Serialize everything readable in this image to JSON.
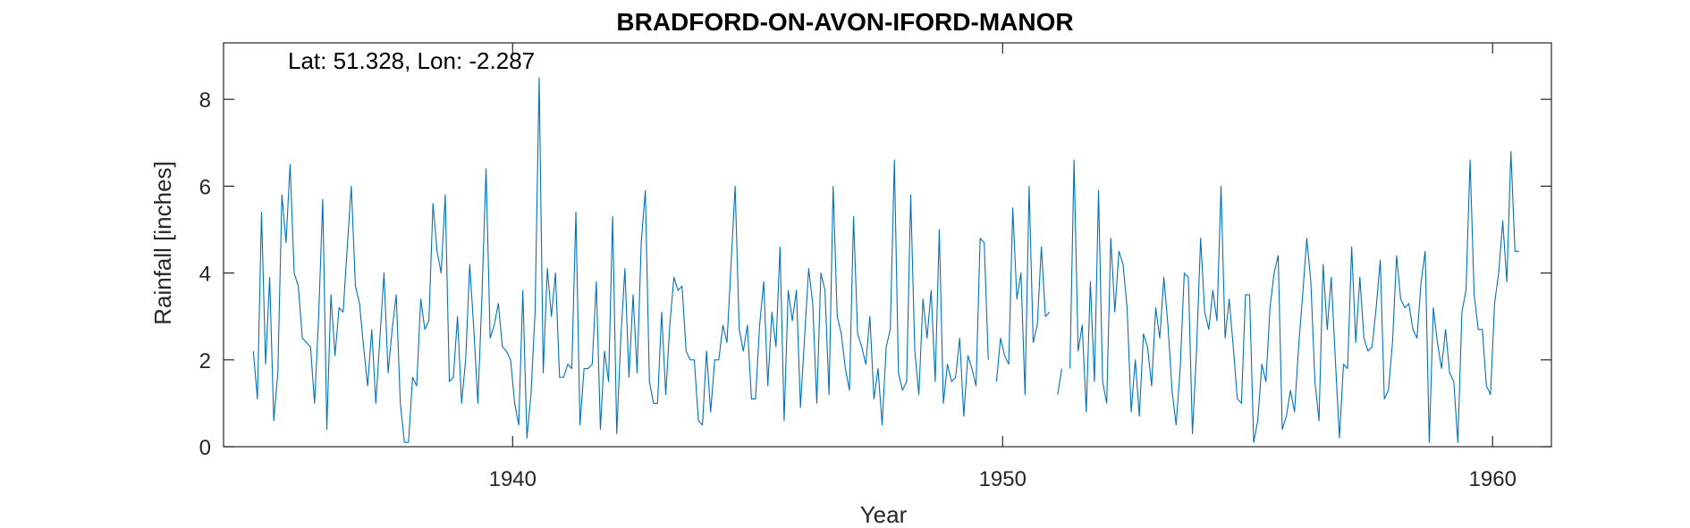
{
  "chart_data": {
    "type": "line",
    "title": "BRADFORD-ON-AVON-IFORD-MANOR",
    "annotation": "Lat: 51.328, Lon: -2.287",
    "xlabel": "Year",
    "ylabel": "Rainfall [inches]",
    "xlim": [
      1934.1,
      1961.2
    ],
    "ylim": [
      0,
      9.3
    ],
    "xticks": [
      1940,
      1950,
      1960
    ],
    "xtick_labels": [
      "1940",
      "1950",
      "1960"
    ],
    "yticks": [
      0,
      2,
      4,
      6,
      8
    ],
    "ytick_labels": [
      "0",
      "2",
      "4",
      "6",
      "8"
    ],
    "grid": false,
    "line_color": "#0072BD",
    "start_year": 1934.708,
    "step_years": 0.08333,
    "series": [
      {
        "values": [
          2.2,
          1.1,
          5.4,
          1.9,
          3.9,
          0.6,
          1.7,
          5.8,
          4.7,
          6.5,
          4.0,
          3.7,
          2.5,
          2.4,
          2.3,
          1.0,
          3.0,
          5.7,
          0.4,
          3.5,
          2.1,
          3.2,
          3.1,
          4.6,
          6.0,
          3.7,
          3.3,
          2.3,
          1.4,
          2.7,
          1.0,
          2.5,
          4.0,
          1.7,
          2.7,
          3.5,
          1.0,
          0.1,
          0.1,
          1.6,
          1.4,
          3.4,
          2.7,
          2.9,
          5.6,
          4.5,
          4.0,
          5.8,
          1.5,
          1.6,
          3.0,
          1.0,
          2.0,
          4.2,
          2.7,
          1.0,
          3.5,
          6.4,
          2.5,
          2.8,
          3.3,
          2.3,
          2.2,
          2.0,
          1.0,
          0.5,
          3.6,
          0.2,
          1.2,
          3.1,
          8.5,
          1.7,
          4.1,
          3.0,
          4.0,
          1.6,
          1.6,
          1.9,
          1.8,
          5.4,
          0.5,
          1.8,
          1.8,
          1.9,
          3.8,
          0.4,
          2.2,
          1.5,
          5.3,
          0.3,
          2.5,
          4.1,
          1.6,
          3.5,
          1.7,
          4.7,
          5.9,
          1.5,
          1.0,
          1.0,
          3.1,
          1.2,
          2.8,
          3.9,
          3.6,
          3.7,
          2.2,
          2.0,
          2.0,
          0.6,
          0.5,
          2.2,
          0.8,
          2.0,
          2.0,
          2.8,
          2.4,
          4.2,
          6.0,
          2.7,
          2.2,
          2.8,
          1.1,
          1.1,
          2.8,
          3.8,
          1.4,
          3.1,
          2.3,
          4.6,
          0.6,
          3.6,
          2.9,
          3.6,
          0.9,
          2.5,
          4.1,
          3.3,
          1.0,
          4.0,
          3.6,
          1.2,
          6.0,
          3.0,
          2.6,
          1.8,
          1.3,
          5.3,
          2.6,
          2.3,
          1.9,
          3.0,
          1.1,
          1.8,
          0.5,
          2.3,
          2.7,
          6.6,
          1.7,
          1.3,
          1.5,
          5.8,
          2.2,
          1.2,
          3.4,
          2.5,
          3.6,
          1.5,
          5.0,
          1.0,
          1.9,
          1.5,
          1.6,
          2.5,
          0.7,
          2.1,
          1.8,
          1.4,
          4.8,
          4.7,
          2.0,
          null,
          1.5,
          2.5,
          2.1,
          1.9,
          5.5,
          3.4,
          4.0,
          1.2,
          6.0,
          2.4,
          2.8,
          4.6,
          3.0,
          3.1,
          null,
          1.2,
          1.8,
          null,
          1.8,
          6.6,
          2.2,
          2.8,
          0.8,
          3.8,
          1.5,
          5.9,
          1.5,
          1.0,
          4.8,
          3.1,
          4.5,
          4.2,
          3.2,
          0.8,
          2.0,
          0.7,
          2.6,
          2.3,
          1.4,
          3.2,
          2.5,
          3.9,
          2.8,
          1.3,
          0.5,
          1.8,
          4.0,
          3.9,
          0.3,
          2.2,
          4.8,
          3.1,
          2.7,
          3.6,
          2.9,
          6.0,
          2.5,
          3.4,
          2.3,
          1.1,
          1.0,
          3.5,
          3.5,
          0.1,
          0.6,
          1.9,
          1.5,
          3.2,
          4.0,
          4.4,
          0.4,
          0.7,
          1.3,
          0.8,
          2.3,
          3.5,
          4.8,
          3.8,
          1.5,
          0.6,
          4.2,
          2.7,
          3.9,
          2.0,
          0.2,
          1.9,
          1.8,
          4.6,
          2.4,
          3.9,
          2.5,
          2.2,
          2.3,
          3.2,
          4.3,
          1.1,
          1.3,
          2.4,
          4.4,
          3.4,
          3.2,
          3.3,
          2.7,
          2.5,
          3.8,
          4.5,
          0.1,
          3.2,
          2.4,
          1.8,
          2.7,
          1.7,
          1.5,
          0.1,
          3.1,
          3.6,
          6.6,
          3.5,
          2.7,
          2.7,
          1.4,
          1.2,
          3.3,
          4.0,
          5.2,
          3.8,
          6.8,
          4.5,
          4.5
        ]
      }
    ]
  }
}
